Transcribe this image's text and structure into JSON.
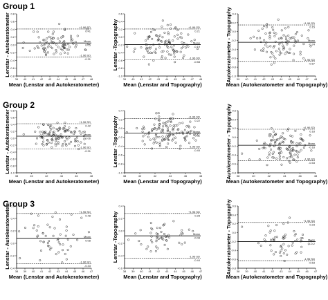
{
  "groups": [
    {
      "title": "Group 1"
    },
    {
      "title": "Group 2"
    },
    {
      "title": "Group 3"
    }
  ],
  "chart_data": [
    {
      "type": "scatter",
      "group": 1,
      "xlabel": "Mean (Lenstar and Autokeratometer)",
      "ylabel": "Lenstar - Autokeratometer",
      "xlim": [
        39,
        48
      ],
      "ylim": [
        -0.8,
        0.8
      ],
      "xticks": [
        39,
        40,
        41,
        42,
        43,
        44,
        45,
        46,
        47,
        48
      ],
      "yticks": [
        -0.8,
        -0.6,
        -0.4,
        -0.2,
        0,
        0.2,
        0.4,
        0.6,
        0.8
      ],
      "lines": [
        {
          "value": 0.41,
          "label": "+1.96 SD",
          "value_text": "0.41",
          "style": "dashed"
        },
        {
          "value": 0.05,
          "label": "Mean",
          "value_text": "0.05",
          "style": "solid"
        },
        {
          "value": -0.31,
          "label": "-1.96 SD",
          "value_text": "-0.31",
          "style": "dashed"
        }
      ],
      "n": 90,
      "spread": 0.18,
      "xcenter": 43.8,
      "xspread": 1.6,
      "seed": 11
    },
    {
      "type": "scatter",
      "group": 1,
      "xlabel": "Mean (Lenstar and Topography)",
      "ylabel": "Lenstar -Topography",
      "xlim": [
        39,
        48
      ],
      "ylim": [
        -1.0,
        0.6
      ],
      "xticks": [
        39,
        40,
        41,
        42,
        43,
        44,
        45,
        46,
        47,
        48
      ],
      "yticks": [
        -1.0,
        -0.8,
        -0.6,
        -0.4,
        -0.2,
        0,
        0.2,
        0.4,
        0.6
      ],
      "lines": [
        {
          "value": 0.21,
          "label": "+1.96 SD",
          "value_text": "0.21",
          "style": "dashed"
        },
        {
          "value": -0.19,
          "label": "Mean",
          "value_text": "-0.19",
          "style": "solid"
        },
        {
          "value": -0.58,
          "label": "-1.96 SD",
          "value_text": "-0.58",
          "style": "dashed"
        }
      ],
      "n": 110,
      "spread": 0.2,
      "xcenter": 43.6,
      "xspread": 1.6,
      "seed": 23
    },
    {
      "type": "scatter",
      "group": 1,
      "xlabel": "Mean (Autokeratometer and Topography)",
      "ylabel": "Autokeratometer - Topography",
      "xlim": [
        39,
        48
      ],
      "ylim": [
        -1.0,
        0.4
      ],
      "xticks": [
        39,
        40,
        41,
        42,
        43,
        44,
        45,
        46,
        47,
        48
      ],
      "yticks": [
        -1.0,
        -0.8,
        -0.6,
        -0.4,
        -0.2,
        0,
        0.2,
        0.4
      ],
      "lines": [
        {
          "value": 0.15,
          "label": "+1.96 SD",
          "value_text": "0.15",
          "style": "dashed"
        },
        {
          "value": -0.24,
          "label": "Mean",
          "value_text": "-0.24",
          "style": "solid"
        },
        {
          "value": -0.67,
          "label": "-1.96 SD",
          "value_text": "-0.67",
          "style": "dashed"
        }
      ],
      "n": 95,
      "spread": 0.21,
      "xcenter": 44.0,
      "xspread": 1.5,
      "seed": 37
    },
    {
      "type": "scatter",
      "group": 2,
      "xlabel": "Mean (Lenstar and Autokeratometer)",
      "ylabel": "Lenstar - Autokeratometer",
      "xlim": [
        38,
        48
      ],
      "ylim": [
        -1.0,
        0.8
      ],
      "xticks": [
        38,
        40,
        42,
        44,
        46,
        48
      ],
      "yticks": [
        -1.0,
        -0.8,
        -0.6,
        -0.4,
        -0.2,
        0,
        0.2,
        0.4,
        0.6,
        0.8
      ],
      "lines": [
        {
          "value": 0.42,
          "label": "+1.96 SD",
          "value_text": "0.42",
          "style": "dashed"
        },
        {
          "value": 0.06,
          "label": "Mean",
          "value_text": "0.06",
          "style": "solid"
        },
        {
          "value": -0.31,
          "label": "-1.96 SD",
          "value_text": "-0.31",
          "style": "dashed"
        }
      ],
      "n": 120,
      "spread": 0.18,
      "xcenter": 43.5,
      "xspread": 1.8,
      "seed": 51
    },
    {
      "type": "scatter",
      "group": 2,
      "xlabel": "Mean (Lenstar and Topography)",
      "ylabel": "Lenstar -Topography",
      "xlim": [
        38,
        48
      ],
      "ylim": [
        -1.0,
        0.4
      ],
      "xticks": [
        38,
        40,
        42,
        44,
        46,
        48
      ],
      "yticks": [
        -1.0,
        -0.8,
        -0.6,
        -0.4,
        -0.2,
        0,
        0.2,
        0.4
      ],
      "lines": [
        {
          "value": 0.22,
          "label": "+1.96 SD",
          "value_text": "0.22",
          "style": "dashed"
        },
        {
          "value": -0.11,
          "label": "Mean",
          "value_text": "-0.11",
          "style": "solid"
        },
        {
          "value": -0.45,
          "label": "-1.96 SD",
          "value_text": "-0.45",
          "style": "dashed"
        }
      ],
      "n": 130,
      "spread": 0.17,
      "xcenter": 43.5,
      "xspread": 1.8,
      "seed": 67
    },
    {
      "type": "scatter",
      "group": 2,
      "xlabel": "Mean (Autokeratometer and Topography)",
      "ylabel": "Autokeratometer - Topography",
      "xlim": [
        38,
        48
      ],
      "ylim": [
        -0.8,
        0.6
      ],
      "xticks": [
        38,
        40,
        42,
        44,
        46,
        48
      ],
      "yticks": [
        -0.8,
        -0.6,
        -0.4,
        -0.2,
        0,
        0.2,
        0.4,
        0.6
      ],
      "lines": [
        {
          "value": 0.18,
          "label": "+1.96 SD",
          "value_text": "0.18",
          "style": "dashed"
        },
        {
          "value": -0.18,
          "label": "Mean",
          "value_text": "-0.18",
          "style": "solid"
        },
        {
          "value": -0.53,
          "label": "-1.96 SD",
          "value_text": "-0.53",
          "style": "dashed"
        }
      ],
      "n": 120,
      "spread": 0.18,
      "xcenter": 43.8,
      "xspread": 1.7,
      "seed": 79
    },
    {
      "type": "scatter",
      "group": 3,
      "xlabel": "Mean (Lenstar and Autokeratometer)",
      "ylabel": "Lenstar - Autokeratometer",
      "xlim": [
        38,
        47
      ],
      "ylim": [
        -0.4,
        0.6
      ],
      "xticks": [
        38,
        39,
        40,
        41,
        42,
        43,
        44,
        45,
        46,
        47
      ],
      "yticks": [
        -0.4,
        -0.2,
        0,
        0.2,
        0.4,
        0.6
      ],
      "lines": [
        {
          "value": 0.48,
          "label": "+1.96 SD",
          "value_text": "0.48",
          "style": "dashed"
        },
        {
          "value": 0.08,
          "label": "Mean",
          "value_text": "0.08",
          "style": "solid"
        },
        {
          "value": -0.33,
          "label": "-1.96 SD",
          "value_text": "-0.33",
          "style": "dashed"
        }
      ],
      "n": 55,
      "spread": 0.2,
      "xcenter": 42.3,
      "xspread": 1.6,
      "seed": 91
    },
    {
      "type": "scatter",
      "group": 3,
      "xlabel": "Mean (Lenstar and Topography)",
      "ylabel": "Lenstar -Topography",
      "xlim": [
        38,
        47
      ],
      "ylim": [
        -0.6,
        0.4
      ],
      "xticks": [
        38,
        39,
        40,
        41,
        42,
        43,
        44,
        45,
        46,
        47
      ],
      "yticks": [
        -0.6,
        -0.4,
        -0.2,
        0,
        0.2,
        0.4
      ],
      "lines": [
        {
          "value": 0.28,
          "label": "+1.96 SD",
          "value_text": "0.28",
          "style": "dashed"
        },
        {
          "value": -0.08,
          "label": "Mean",
          "value_text": "-0.08",
          "style": "solid"
        },
        {
          "value": -0.44,
          "label": "-1.96 SD",
          "value_text": "-0.44",
          "style": "dashed"
        }
      ],
      "n": 55,
      "spread": 0.12,
      "xcenter": 42.5,
      "xspread": 1.5,
      "seed": 103
    },
    {
      "type": "scatter",
      "group": 3,
      "xlabel": "Mean (Autokeratometer and Topography)",
      "ylabel": "Autokeratometer - Topography",
      "xlim": [
        38,
        47
      ],
      "ylim": [
        -0.8,
        0.6
      ],
      "xticks": [
        38,
        39,
        40,
        41,
        42,
        43,
        44,
        45,
        46,
        47
      ],
      "yticks": [
        -0.8,
        -0.6,
        -0.4,
        -0.2,
        0,
        0.2,
        0.4,
        0.6
      ],
      "lines": [
        {
          "value": 0.23,
          "label": "+1.96 SD",
          "value_text": "0.23",
          "style": "dashed"
        },
        {
          "value": -0.2,
          "label": "Mean",
          "value_text": "-0.2",
          "style": "solid"
        },
        {
          "value": -0.63,
          "label": "-1.96 SD",
          "value_text": "-0.63",
          "style": "dashed"
        }
      ],
      "n": 60,
      "spread": 0.2,
      "xcenter": 43.5,
      "xspread": 1.6,
      "seed": 117
    }
  ]
}
